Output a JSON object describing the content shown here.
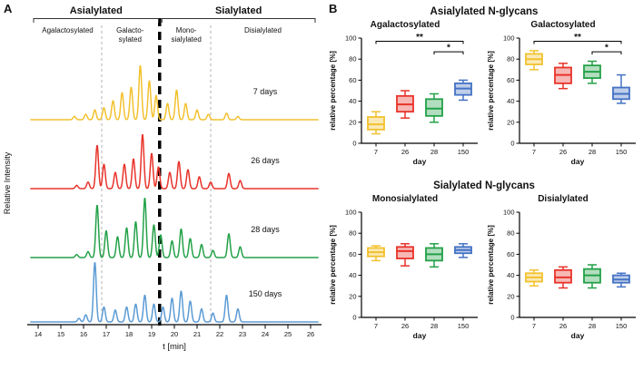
{
  "panelA": {
    "label": "A",
    "y_axis_label": "Relative Intensity",
    "x_axis_label": "t [min]",
    "top_groups": [
      {
        "label": "Asialylated",
        "t_start": 13.8,
        "t_end": 19.3
      },
      {
        "label": "Sialylated",
        "t_start": 19.45,
        "t_end": 26.2
      }
    ],
    "regions": [
      {
        "lines": [
          "Agalactosylated"
        ],
        "t_start": 13.8,
        "t_end": 16.8
      },
      {
        "lines": [
          "Galacto-",
          "sylated"
        ],
        "t_start": 16.8,
        "t_end": 19.3
      },
      {
        "lines": [
          "Mono-",
          "sialylated"
        ],
        "t_start": 19.45,
        "t_end": 21.6
      },
      {
        "lines": [
          "Disialylated"
        ],
        "t_start": 21.6,
        "t_end": 26.2
      }
    ],
    "dividers": {
      "light": [
        16.8,
        21.6
      ],
      "heavy": 19.35
    }
  },
  "panelB": {
    "label": "B",
    "groups": [
      {
        "title": "Asialylated N-glycans"
      },
      {
        "title": "Sialylated N-glycans"
      }
    ]
  },
  "colors": {
    "day7": "#F2C12E",
    "day26": "#E8332A",
    "day28": "#23A148",
    "day150": "#4472C4"
  },
  "chart_data": [
    {
      "id": "chromatogram",
      "type": "line",
      "title": "",
      "xlabel": "t [min]",
      "ylabel": "Relative Intensity",
      "xlim": [
        13.6,
        26.4
      ],
      "x_ticks": [
        14,
        15,
        16,
        17,
        18,
        19,
        20,
        21,
        22,
        23,
        24,
        25,
        26
      ],
      "peak_sigma": 0.085,
      "series": [
        {
          "name": "7 days",
          "color": "#F2C12E",
          "amp": 60,
          "peaks": [
            [
              15.6,
              0.06
            ],
            [
              16.1,
              0.1
            ],
            [
              16.5,
              0.18
            ],
            [
              16.9,
              0.22
            ],
            [
              17.3,
              0.35
            ],
            [
              17.7,
              0.5
            ],
            [
              18.1,
              0.6
            ],
            [
              18.5,
              1.0
            ],
            [
              18.9,
              0.72
            ],
            [
              19.2,
              0.45
            ],
            [
              19.7,
              0.3
            ],
            [
              20.1,
              0.55
            ],
            [
              20.5,
              0.3
            ],
            [
              21.0,
              0.18
            ],
            [
              21.5,
              0.1
            ],
            [
              22.3,
              0.12
            ],
            [
              22.8,
              0.06
            ]
          ]
        },
        {
          "name": "26 days",
          "color": "#E8332A",
          "amp": 60,
          "peaks": [
            [
              15.7,
              0.06
            ],
            [
              16.2,
              0.12
            ],
            [
              16.6,
              0.8
            ],
            [
              16.9,
              0.45
            ],
            [
              17.4,
              0.3
            ],
            [
              17.8,
              0.45
            ],
            [
              18.2,
              0.55
            ],
            [
              18.6,
              1.0
            ],
            [
              19.0,
              0.65
            ],
            [
              19.3,
              0.4
            ],
            [
              19.8,
              0.3
            ],
            [
              20.2,
              0.5
            ],
            [
              20.6,
              0.35
            ],
            [
              21.1,
              0.22
            ],
            [
              21.6,
              0.12
            ],
            [
              22.4,
              0.28
            ],
            [
              22.9,
              0.15
            ]
          ]
        },
        {
          "name": "28 days",
          "color": "#23A148",
          "amp": 66,
          "peaks": [
            [
              15.7,
              0.05
            ],
            [
              16.2,
              0.1
            ],
            [
              16.6,
              0.88
            ],
            [
              17.0,
              0.45
            ],
            [
              17.5,
              0.35
            ],
            [
              17.9,
              0.5
            ],
            [
              18.3,
              0.6
            ],
            [
              18.7,
              1.0
            ],
            [
              19.1,
              0.55
            ],
            [
              19.4,
              0.38
            ],
            [
              19.9,
              0.28
            ],
            [
              20.3,
              0.48
            ],
            [
              20.7,
              0.32
            ],
            [
              21.2,
              0.22
            ],
            [
              21.7,
              0.12
            ],
            [
              22.4,
              0.4
            ],
            [
              22.9,
              0.18
            ]
          ]
        },
        {
          "name": "150 days",
          "color": "#5B9BD5",
          "amp": 66,
          "peaks": [
            [
              15.8,
              0.06
            ],
            [
              16.1,
              0.12
            ],
            [
              16.5,
              1.0
            ],
            [
              16.9,
              0.25
            ],
            [
              17.4,
              0.2
            ],
            [
              17.9,
              0.25
            ],
            [
              18.3,
              0.3
            ],
            [
              18.7,
              0.45
            ],
            [
              19.1,
              0.3
            ],
            [
              19.5,
              0.25
            ],
            [
              19.9,
              0.4
            ],
            [
              20.3,
              0.52
            ],
            [
              20.7,
              0.35
            ],
            [
              21.2,
              0.22
            ],
            [
              21.7,
              0.15
            ],
            [
              22.3,
              0.45
            ],
            [
              22.8,
              0.22
            ]
          ]
        }
      ]
    },
    {
      "id": "agalactosylated",
      "type": "box",
      "title": "Agalactosylated",
      "xlabel": "day",
      "ylabel": "relative percentage [%]",
      "ylim": [
        0,
        100
      ],
      "yticks": [
        0,
        20,
        40,
        60,
        80,
        100
      ],
      "categories": [
        "7",
        "26",
        "28",
        "150"
      ],
      "colors": [
        "#F2C12E",
        "#E8332A",
        "#23A148",
        "#4472C4"
      ],
      "boxes": [
        {
          "whisker_low": 9,
          "q1": 13,
          "median": 18,
          "q3": 25,
          "whisker_high": 30
        },
        {
          "whisker_low": 24,
          "q1": 30,
          "median": 37,
          "q3": 45,
          "whisker_high": 50
        },
        {
          "whisker_low": 20,
          "q1": 26,
          "median": 33,
          "q3": 42,
          "whisker_high": 47
        },
        {
          "whisker_low": 41,
          "q1": 46,
          "median": 52,
          "q3": 57,
          "whisker_high": 60
        }
      ],
      "significance": [
        {
          "from": 0,
          "to": 3,
          "label": "**",
          "y": 97
        },
        {
          "from": 2,
          "to": 3,
          "label": "*",
          "y": 87
        }
      ]
    },
    {
      "id": "galactosylated",
      "type": "box",
      "title": "Galactosylated",
      "xlabel": "day",
      "ylabel": "relative percentage [%]",
      "ylim": [
        0,
        100
      ],
      "yticks": [
        0,
        20,
        40,
        60,
        80,
        100
      ],
      "categories": [
        "7",
        "26",
        "28",
        "150"
      ],
      "colors": [
        "#F2C12E",
        "#E8332A",
        "#23A148",
        "#4472C4"
      ],
      "boxes": [
        {
          "whisker_low": 70,
          "q1": 75,
          "median": 80,
          "q3": 85,
          "whisker_high": 88
        },
        {
          "whisker_low": 52,
          "q1": 57,
          "median": 65,
          "q3": 72,
          "whisker_high": 76
        },
        {
          "whisker_low": 57,
          "q1": 62,
          "median": 68,
          "q3": 74,
          "whisker_high": 78
        },
        {
          "whisker_low": 38,
          "q1": 42,
          "median": 47,
          "q3": 53,
          "whisker_high": 65
        }
      ],
      "significance": [
        {
          "from": 0,
          "to": 3,
          "label": "**",
          "y": 97
        },
        {
          "from": 2,
          "to": 3,
          "label": "*",
          "y": 87
        }
      ]
    },
    {
      "id": "monosialylated",
      "type": "box",
      "title": "Monosialylated",
      "xlabel": "day",
      "ylabel": "relative percentage [%]",
      "ylim": [
        0,
        100
      ],
      "yticks": [
        0,
        20,
        40,
        60,
        80,
        100
      ],
      "categories": [
        "7",
        "26",
        "28",
        "150"
      ],
      "colors": [
        "#F2C12E",
        "#E8332A",
        "#23A148",
        "#4472C4"
      ],
      "boxes": [
        {
          "whisker_low": 54,
          "q1": 58,
          "median": 62,
          "q3": 66,
          "whisker_high": 68
        },
        {
          "whisker_low": 49,
          "q1": 56,
          "median": 63,
          "q3": 67,
          "whisker_high": 70
        },
        {
          "whisker_low": 48,
          "q1": 54,
          "median": 60,
          "q3": 66,
          "whisker_high": 70
        },
        {
          "whisker_low": 57,
          "q1": 61,
          "median": 64,
          "q3": 67,
          "whisker_high": 70
        }
      ],
      "significance": []
    },
    {
      "id": "disialylated",
      "type": "box",
      "title": "Disialylated",
      "xlabel": "day",
      "ylabel": "relative percentage [%]",
      "ylim": [
        0,
        100
      ],
      "yticks": [
        0,
        20,
        40,
        60,
        80,
        100
      ],
      "categories": [
        "7",
        "26",
        "28",
        "150"
      ],
      "colors": [
        "#F2C12E",
        "#E8332A",
        "#23A148",
        "#4472C4"
      ],
      "boxes": [
        {
          "whisker_low": 30,
          "q1": 34,
          "median": 38,
          "q3": 42,
          "whisker_high": 45
        },
        {
          "whisker_low": 28,
          "q1": 33,
          "median": 38,
          "q3": 45,
          "whisker_high": 48
        },
        {
          "whisker_low": 28,
          "q1": 33,
          "median": 40,
          "q3": 46,
          "whisker_high": 50
        },
        {
          "whisker_low": 29,
          "q1": 33,
          "median": 36,
          "q3": 40,
          "whisker_high": 42
        }
      ],
      "significance": []
    }
  ]
}
